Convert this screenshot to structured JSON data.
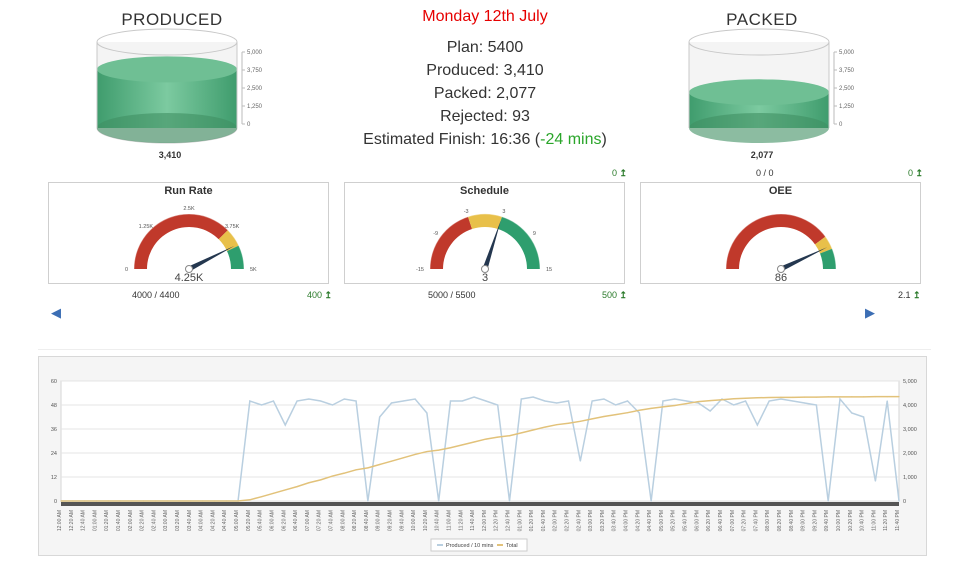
{
  "produced_tank": {
    "title": "PRODUCED",
    "value_label": "3,410",
    "level": 0.682,
    "axis_ticks": [
      "5,000",
      "3,750",
      "2,500",
      "1,250",
      "0"
    ]
  },
  "packed_tank": {
    "title": "PACKED",
    "value_label": "2,077",
    "level": 0.415,
    "axis_ticks": [
      "5,000",
      "3,750",
      "2,500",
      "1,250",
      "0"
    ]
  },
  "summary": {
    "date": "Monday 12th July",
    "plan": "Plan: 5400",
    "produced": "Produced: 3,410",
    "packed": "Packed: 2,077",
    "rejected": "Rejected: 93",
    "estimated_finish": "Estimated Finish: 16:36",
    "estimated_delta": "-24 mins"
  },
  "top_right_labels": {
    "schedule_delta": "0",
    "oee_ratio": "0 / 0",
    "oee_delta": "0"
  },
  "gauges": [
    {
      "title": "Run Rate",
      "value": 4250,
      "value_label": "4.25K",
      "min": 0,
      "max": 5000,
      "ticks": [
        "0",
        "1.25K",
        "2.5K",
        "3.75K",
        "5K"
      ],
      "footer": "4000 / 4400",
      "delta": "400"
    },
    {
      "title": "Schedule",
      "value": 3,
      "value_label": "3",
      "min": -15,
      "max": 15,
      "ticks": [
        "-15",
        "-9",
        "-3",
        "3",
        "9",
        "15"
      ],
      "footer": "5000 / 5500",
      "delta": "500"
    },
    {
      "title": "OEE",
      "value": 86,
      "value_label": "86",
      "min": 0,
      "max": 100,
      "ticks": [],
      "footer": "",
      "delta": "2.1"
    }
  ],
  "colors": {
    "red": "#c0392b",
    "yellow": "#e8c04a",
    "green": "#2e9e6e",
    "tank_green": "#4caf7d",
    "line_blue": "#b9cfe0",
    "line_gold": "#e2c27a",
    "date_red": "#e60000",
    "delta_green": "#2aa52a"
  },
  "icons": {
    "left_nav": "arrow-left-icon",
    "right_nav": "arrow-right-icon",
    "up": "arrow-up-icon"
  },
  "chart_data": {
    "type": "line",
    "x": [
      "12:00 AM",
      "12:20 AM",
      "12:40 AM",
      "01:00 AM",
      "01:20 AM",
      "01:40 AM",
      "02:00 AM",
      "02:20 AM",
      "02:40 AM",
      "03:00 AM",
      "03:20 AM",
      "03:40 AM",
      "04:00 AM",
      "04:20 AM",
      "04:40 AM",
      "05:00 AM",
      "05:20 AM",
      "05:40 AM",
      "06:00 AM",
      "06:20 AM",
      "06:40 AM",
      "07:00 AM",
      "07:20 AM",
      "07:40 AM",
      "08:00 AM",
      "08:20 AM",
      "08:40 AM",
      "09:00 AM",
      "09:20 AM",
      "09:40 AM",
      "10:00 AM",
      "10:20 AM",
      "10:40 AM",
      "11:00 AM",
      "11:20 AM",
      "11:40 AM",
      "12:00 PM",
      "12:20 PM",
      "12:40 PM",
      "01:00 PM",
      "01:20 PM",
      "01:40 PM",
      "02:00 PM",
      "02:20 PM",
      "02:40 PM",
      "03:00 PM",
      "03:20 PM",
      "03:40 PM",
      "04:00 PM",
      "04:20 PM",
      "04:40 PM",
      "05:00 PM",
      "05:20 PM",
      "05:40 PM",
      "06:00 PM",
      "06:20 PM",
      "06:40 PM",
      "07:00 PM",
      "07:20 PM",
      "07:40 PM",
      "08:00 PM",
      "08:20 PM",
      "08:40 PM",
      "09:00 PM",
      "09:20 PM",
      "09:40 PM",
      "10:00 PM",
      "10:20 PM",
      "10:40 PM",
      "11:00 PM",
      "11:20 PM",
      "11:40 PM"
    ],
    "series": [
      {
        "name": "Produced / 10 mins",
        "axis": "left",
        "values": [
          0,
          0,
          0,
          0,
          0,
          0,
          0,
          0,
          0,
          0,
          0,
          0,
          0,
          0,
          0,
          0,
          50,
          48,
          50,
          38,
          50,
          51,
          50,
          48,
          51,
          50,
          0,
          42,
          49,
          50,
          51,
          44,
          0,
          50,
          50,
          52,
          50,
          48,
          0,
          51,
          52,
          50,
          49,
          50,
          20,
          50,
          51,
          48,
          50,
          44,
          0,
          50,
          51,
          50,
          49,
          45,
          51,
          48,
          50,
          38,
          50,
          51,
          50,
          49,
          48,
          0,
          51,
          44,
          42,
          10,
          50,
          0
        ]
      },
      {
        "name": "Total",
        "axis": "right",
        "values": [
          0,
          0,
          0,
          0,
          0,
          0,
          0,
          0,
          0,
          0,
          0,
          0,
          0,
          0,
          0,
          0,
          50,
          180,
          320,
          460,
          600,
          760,
          880,
          1040,
          1160,
          1300,
          1380,
          1520,
          1660,
          1800,
          1940,
          2060,
          2120,
          2220,
          2340,
          2460,
          2580,
          2660,
          2720,
          2840,
          2960,
          3080,
          3180,
          3240,
          3320,
          3420,
          3520,
          3600,
          3680,
          3780,
          3860,
          3920,
          3980,
          4060,
          4140,
          4180,
          4220,
          4260,
          4280,
          4300,
          4310,
          4320,
          4320,
          4330,
          4330,
          4340,
          4340,
          4340,
          4340,
          4350,
          4350,
          4350
        ]
      }
    ],
    "y_left": {
      "min": 0,
      "max": 60,
      "ticks": [
        "0",
        "12",
        "24",
        "36",
        "48",
        "60"
      ]
    },
    "y_right": {
      "min": 0,
      "max": 5000,
      "ticks": [
        "0",
        "1,000",
        "2,000",
        "3,000",
        "4,000",
        "5,000"
      ]
    },
    "legend": [
      "Produced / 10 mins",
      "Total"
    ],
    "legend_position": "bottom"
  }
}
